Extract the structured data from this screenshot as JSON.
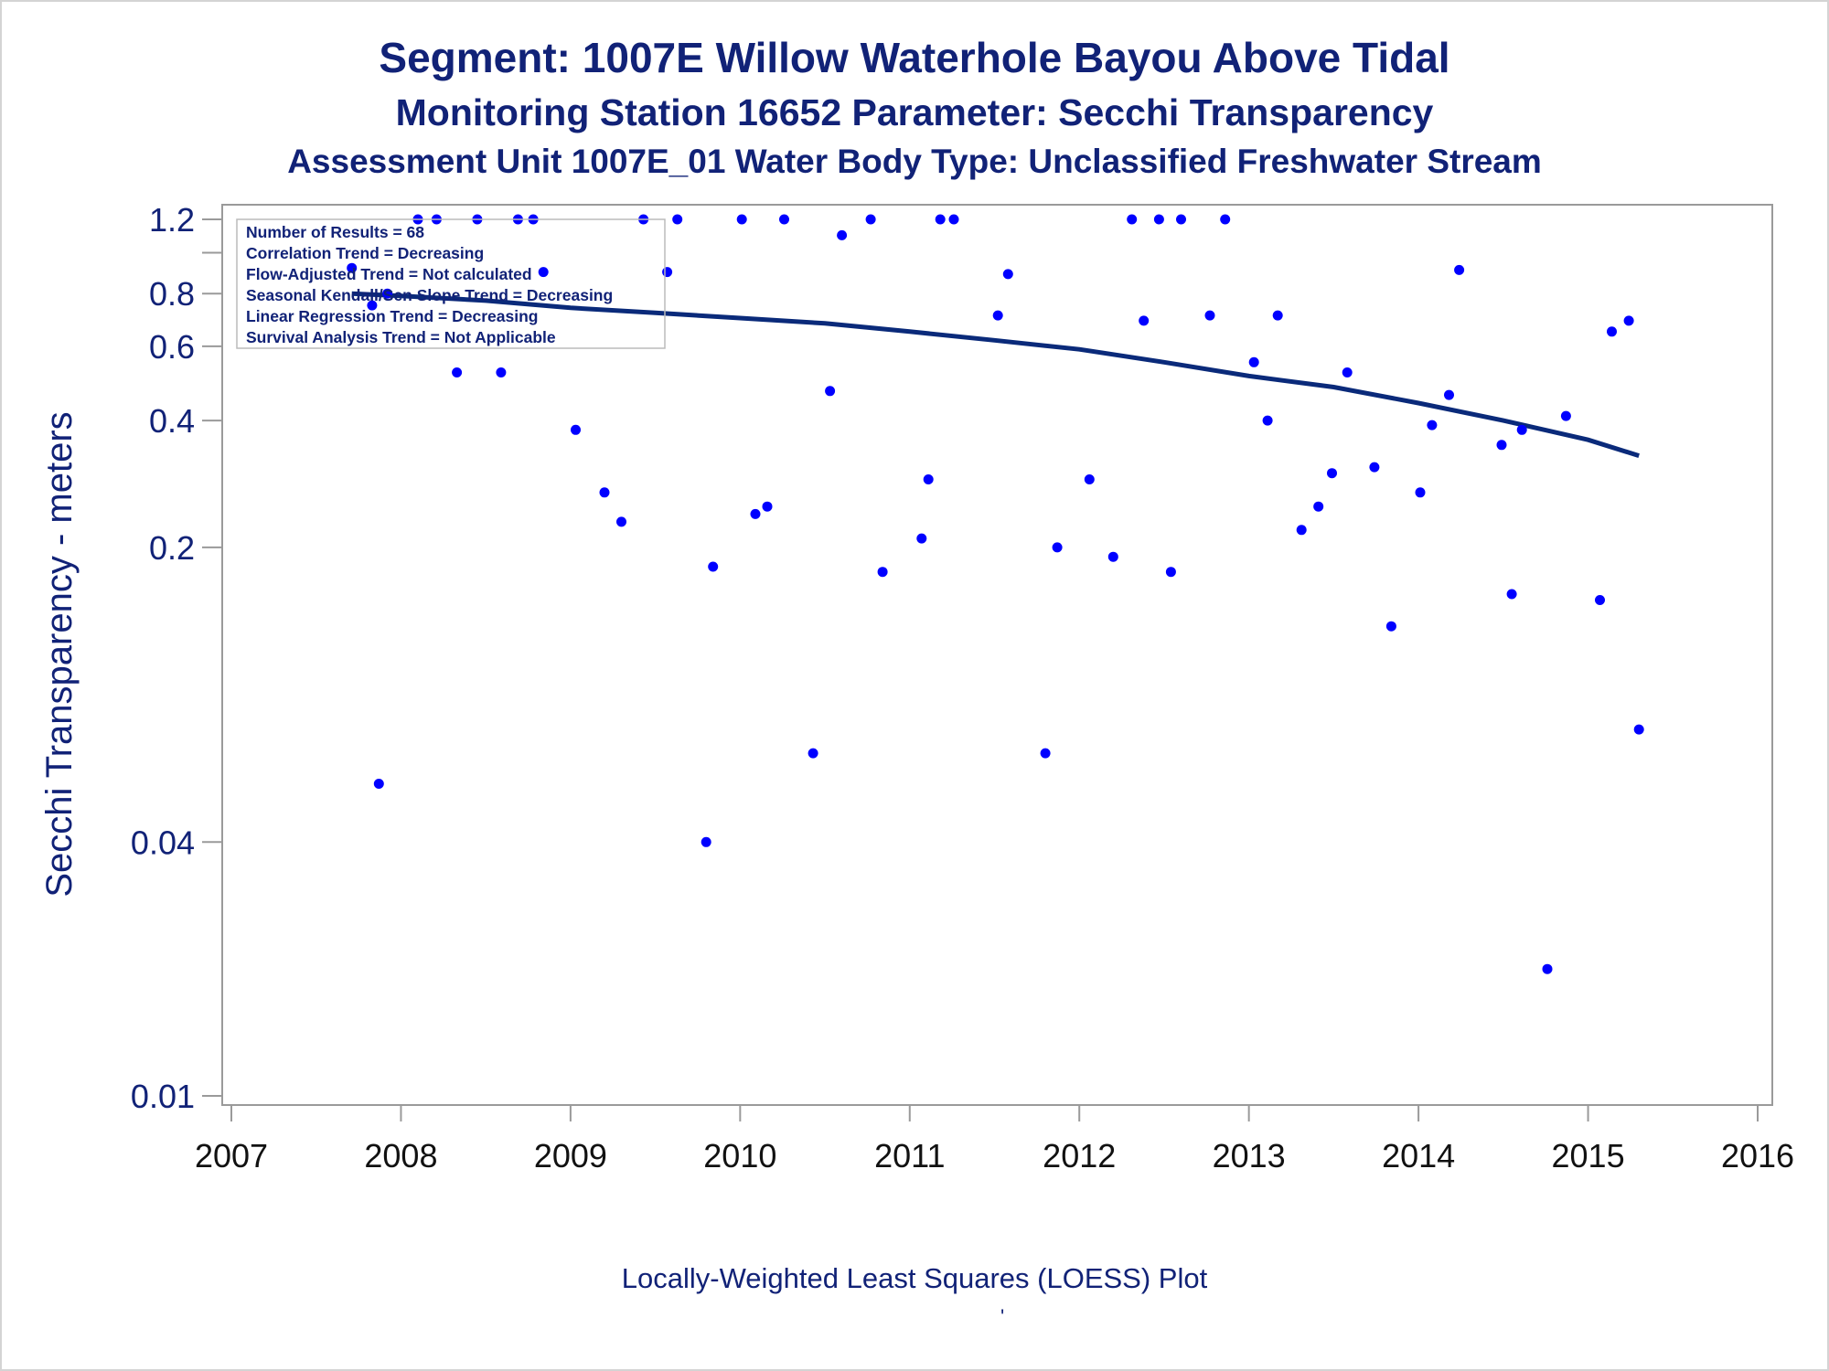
{
  "titles": {
    "line1": "Segment: 1007E  Willow Waterhole Bayou Above Tidal",
    "line2": "Monitoring Station 16652 Parameter: Secchi Transparency",
    "line3": "Assessment Unit 1007E_01   Water Body Type: Unclassified Freshwater Stream"
  },
  "footnote": "Locally-Weighted Least Squares (LOESS) Plot",
  "footnote_mark": "'",
  "stats_box": [
    "Number of Results = 68",
    "Correlation Trend = Decreasing",
    "Flow-Adjusted Trend = Not calculated",
    "Seasonal Kendall/Sen Slope Trend = Decreasing",
    "Linear Regression Trend = Decreasing",
    "Survival Analysis Trend = Not Applicable"
  ],
  "colors": {
    "text": "#112277",
    "marker": "#0000ff",
    "trend_line": "#0a2a7a",
    "axis": "#9a9a9a"
  },
  "chart_data": {
    "type": "scatter",
    "title": "Segment: 1007E  Willow Waterhole Bayou Above Tidal",
    "ylabel": "Secchi Transparency - meters",
    "xlabel": "",
    "y_scale": "log",
    "xlim": [
      2007,
      2016
    ],
    "ylim": [
      0.01,
      1.35
    ],
    "x_ticks": [
      2007,
      2008,
      2009,
      2010,
      2011,
      2012,
      2013,
      2014,
      2015,
      2016
    ],
    "x_tick_labels": [
      "2007",
      "2008",
      "2009",
      "2010",
      "2011",
      "2012",
      "2013",
      "2014",
      "2015",
      "2016"
    ],
    "y_ticks": [
      0.01,
      0.04,
      0.2,
      0.4,
      0.6,
      0.8,
      1.2
    ],
    "y_tick_labels": [
      "0.01",
      "0.04",
      "0.2",
      "0.4",
      "0.6",
      "0.8",
      "1.2"
    ],
    "y_minor_ticks": [
      1.0
    ],
    "grid": false,
    "legend": "none",
    "series": [
      {
        "kind": "scatter",
        "points": [
          [
            2007.71,
            0.92
          ],
          [
            2007.83,
            0.75
          ],
          [
            2007.87,
            0.055
          ],
          [
            2007.92,
            0.8
          ],
          [
            2008.1,
            1.2
          ],
          [
            2008.21,
            1.2
          ],
          [
            2008.33,
            0.52
          ],
          [
            2008.45,
            1.2
          ],
          [
            2008.59,
            0.52
          ],
          [
            2008.69,
            1.2
          ],
          [
            2008.78,
            1.2
          ],
          [
            2008.84,
            0.9
          ],
          [
            2009.03,
            0.38
          ],
          [
            2009.2,
            0.27
          ],
          [
            2009.3,
            0.23
          ],
          [
            2009.43,
            1.2
          ],
          [
            2009.57,
            0.9
          ],
          [
            2009.63,
            1.2
          ],
          [
            2009.8,
            0.04
          ],
          [
            2009.84,
            0.18
          ],
          [
            2010.01,
            1.2
          ],
          [
            2010.09,
            0.24
          ],
          [
            2010.16,
            0.25
          ],
          [
            2010.26,
            1.2
          ],
          [
            2010.43,
            0.065
          ],
          [
            2010.53,
            0.47
          ],
          [
            2010.6,
            1.1
          ],
          [
            2010.77,
            1.2
          ],
          [
            2010.84,
            0.175
          ],
          [
            2011.07,
            0.21
          ],
          [
            2011.11,
            0.29
          ],
          [
            2011.18,
            1.2
          ],
          [
            2011.26,
            1.2
          ],
          [
            2011.52,
            0.71
          ],
          [
            2011.58,
            0.89
          ],
          [
            2011.8,
            0.065
          ],
          [
            2011.87,
            0.2
          ],
          [
            2012.06,
            0.29
          ],
          [
            2012.2,
            0.19
          ],
          [
            2012.31,
            1.2
          ],
          [
            2012.38,
            0.69
          ],
          [
            2012.47,
            1.2
          ],
          [
            2012.54,
            0.175
          ],
          [
            2012.6,
            1.2
          ],
          [
            2012.77,
            0.71
          ],
          [
            2012.86,
            1.2
          ],
          [
            2013.03,
            0.55
          ],
          [
            2013.11,
            0.4
          ],
          [
            2013.17,
            0.71
          ],
          [
            2013.31,
            0.22
          ],
          [
            2013.41,
            0.25
          ],
          [
            2013.49,
            0.3
          ],
          [
            2013.58,
            0.52
          ],
          [
            2013.74,
            0.31
          ],
          [
            2013.84,
            0.13
          ],
          [
            2014.01,
            0.27
          ],
          [
            2014.08,
            0.39
          ],
          [
            2014.18,
            0.46
          ],
          [
            2014.24,
            0.91
          ],
          [
            2014.49,
            0.35
          ],
          [
            2014.55,
            0.155
          ],
          [
            2014.61,
            0.38
          ],
          [
            2014.76,
            0.02
          ],
          [
            2014.87,
            0.41
          ],
          [
            2015.07,
            0.15
          ],
          [
            2015.14,
            0.65
          ],
          [
            2015.24,
            0.69
          ],
          [
            2015.3,
            0.074
          ]
        ]
      },
      {
        "kind": "line",
        "points": [
          [
            2007.71,
            0.8
          ],
          [
            2008.0,
            0.79
          ],
          [
            2008.5,
            0.77
          ],
          [
            2009.0,
            0.74
          ],
          [
            2009.5,
            0.72
          ],
          [
            2010.0,
            0.7
          ],
          [
            2010.5,
            0.68
          ],
          [
            2011.0,
            0.65
          ],
          [
            2011.5,
            0.62
          ],
          [
            2012.0,
            0.59
          ],
          [
            2012.5,
            0.55
          ],
          [
            2013.0,
            0.51
          ],
          [
            2013.5,
            0.48
          ],
          [
            2014.0,
            0.44
          ],
          [
            2014.5,
            0.4
          ],
          [
            2015.0,
            0.36
          ],
          [
            2015.3,
            0.33
          ]
        ]
      }
    ]
  }
}
